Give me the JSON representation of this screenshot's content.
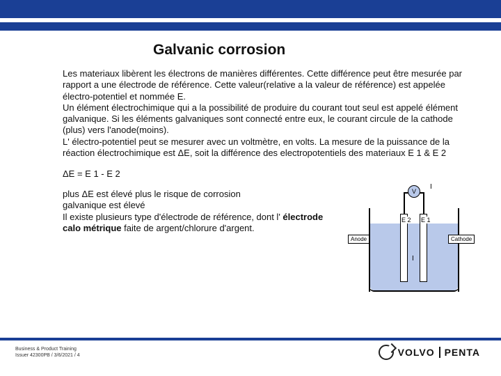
{
  "colors": {
    "brand_blue": "#1a3f95",
    "fluid": "#b9c9ea",
    "voltmeter_fill": "#b9c9ea"
  },
  "title": "Galvanic corrosion",
  "body_text": "Les materiaux libèrent les électrons de manières différentes. Cette différence peut être mesurée par rapport a une électrode de référence. Cette valeur(relative a la valeur de référence) est appelée électro-potentiel et nommée E.\nUn élément électrochimique qui a la possibilité de produire du courant tout seul est appelé élément galvanique. Si les éléments galvaniques sont connecté entre eux, le courant circule de la cathode (plus) vers l'anode(moins).\nL' électro-potentiel peut se mesurer avec un voltmètre, en volts. La mesure de la puissance de la réaction électrochimique  est ΔE, soit la différence des electropotentiels des materiaux E 1 & E 2",
  "equation": "ΔE = E 1 - E 2",
  "lower_text": "plus ΔE est élevé plus le risque de corrosion\n galvanique est élevé\nIl existe plusieurs type d'électrode de référence, dont l' électrode calo métrique faite de argent/chlorure d'argent.",
  "diagram": {
    "I_top": "I",
    "I_bottom": "I",
    "V": "V",
    "E1": "E 1",
    "E2": "E 2",
    "anode": "Anode",
    "cathode": "Cathode"
  },
  "footer": {
    "line1": "Business & Product Training",
    "line2": "Issuer 42300PB / 3/6/2021 / 4"
  },
  "logo": {
    "brand": "VOLVO",
    "sub": "PENTA"
  }
}
